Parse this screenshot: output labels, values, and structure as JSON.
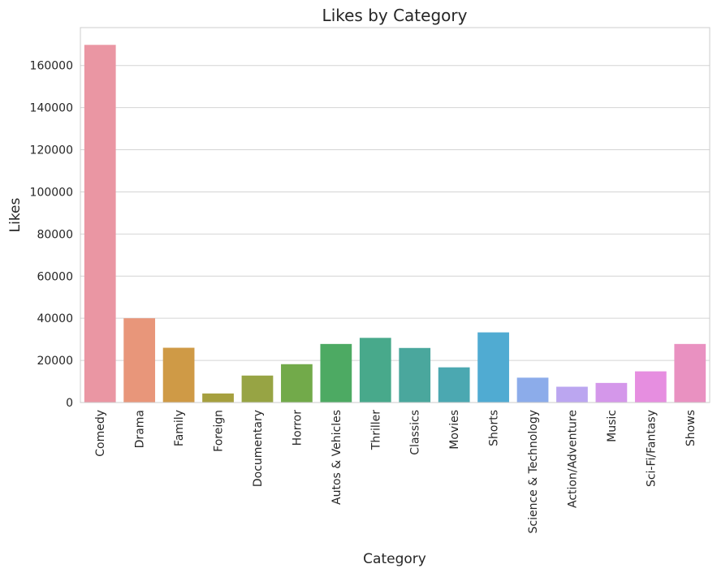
{
  "chart_data": {
    "type": "bar",
    "title": "Likes by Category",
    "xlabel": "Category",
    "ylabel": "Likes",
    "categories": [
      "Comedy",
      "Drama",
      "Family",
      "Foreign",
      "Documentary",
      "Horror",
      "Autos & Vehicles",
      "Thriller",
      "Classics",
      "Movies",
      "Shorts",
      "Science & Technology",
      "Action/Adventure",
      "Music",
      "Sci-Fi/Fantasy",
      "Shows"
    ],
    "values": [
      169800,
      40000,
      26000,
      4300,
      12800,
      18200,
      27800,
      30700,
      25900,
      16700,
      33300,
      11800,
      7500,
      9300,
      14800,
      27800
    ],
    "colors": [
      "#ea96a3",
      "#e8967a",
      "#cf9a46",
      "#a6a03f",
      "#97a444",
      "#72aa4a",
      "#4daa63",
      "#48a98b",
      "#4aa79d",
      "#4ba8b1",
      "#50abd2",
      "#8cacea",
      "#bba6f0",
      "#d497ea",
      "#e68ee0",
      "#e991c1"
    ],
    "yticks": [
      "0",
      "20000",
      "40000",
      "60000",
      "80000",
      "100000",
      "120000",
      "140000",
      "160000"
    ],
    "ylim": [
      0,
      178000
    ],
    "grid": "horizontal"
  }
}
